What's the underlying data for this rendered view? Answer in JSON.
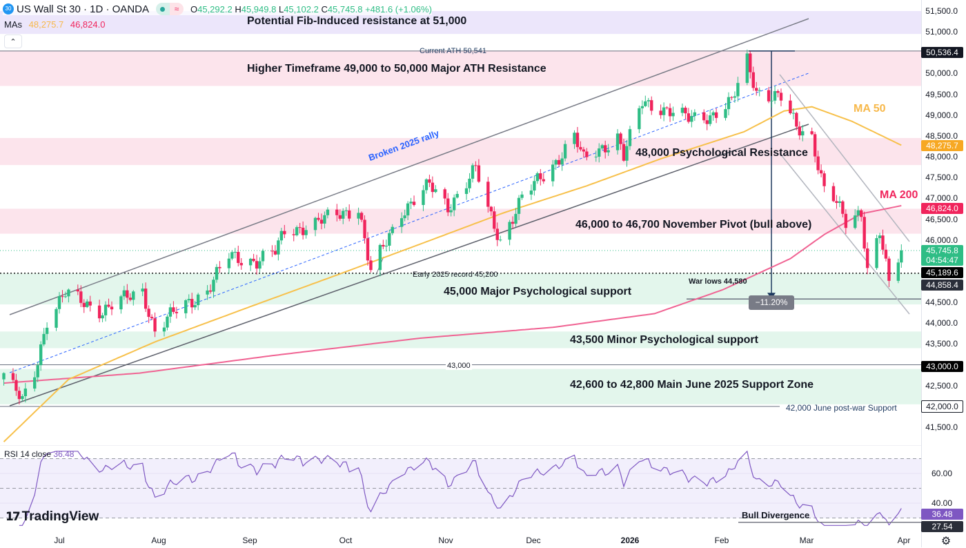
{
  "header": {
    "badge": "30",
    "symbol": "US Wall St 30 · 1D · OANDA",
    "o_label": "O",
    "open": "45,292.2",
    "h_label": "H",
    "high": "45,949.8",
    "l_label": "L",
    "low": "45,102.2",
    "c_label": "C",
    "close": "45,745.8",
    "change": "+481.6 (+1.06%)",
    "mas_label": "MAs",
    "ma50_value": "48,275.7",
    "ma200_value": "46,824.0",
    "collapse_icon": "chevron-up-icon"
  },
  "colors": {
    "up": "#2ebd85",
    "down": "#f0245c",
    "ma50": "#f7c04a",
    "ma200": "#f06292",
    "rsi": "#7e57c2",
    "resistance_zone": "#fce4ec",
    "support_zone": "#e3f6ec",
    "fib_zone": "#ece6fb"
  },
  "annotations": {
    "fib": "Potential Fib-Induced resistance at 51,000",
    "ath_line": "Current ATH 50,541",
    "ath_zone": "Higher Timeframe 49,000 to 50,000 Major ATH Resistance",
    "broken": "Broken 2025 rally",
    "ma50": "MA 50",
    "ma200": "MA 200",
    "res48": "48,000 Psychological Resistance",
    "pivot": "46,000 to 46,700 November Pivot (bull above)",
    "record": "Early 2025 record 45,200",
    "war_lows": "War lows 44,580",
    "measure": "−11.20%",
    "sup45": "45,000 Major Psychological support",
    "sup435": "43,500 Minor Psychological support",
    "line43": "43,000",
    "sup426": "42,600 to 42,800 Main June 2025 Support Zone",
    "line42": "42,000 June post-war Support",
    "bull_div": "Bull Divergence"
  },
  "price_axis": {
    "ticks": [
      "51,500.0",
      "51,000.0",
      "50,000.0",
      "49,500.0",
      "49,000.0",
      "48,500.0",
      "48,000.0",
      "47,500.0",
      "47,000.0",
      "46,500.0",
      "46,000.0",
      "44,500.0",
      "44,000.0",
      "43,500.0",
      "42,500.0",
      "41,500.0"
    ],
    "ath": "50,536.4",
    "ma50": "48,275.7",
    "ma200": "46,824.0",
    "last": "45,745.8",
    "countdown": "04:54:47",
    "record": "45,189.6",
    "war": "44,858.4",
    "l43": "43,000.0",
    "l42": "42,000.0"
  },
  "time_axis": [
    "Jul",
    "Aug",
    "Sep",
    "Oct",
    "Nov",
    "Dec",
    "2026",
    "Feb",
    "Mar",
    "Apr"
  ],
  "rsi": {
    "label": "RSI 14 close",
    "value": "36.48",
    "ticks": [
      "60.00",
      "40.00"
    ],
    "low_mark": "27.54"
  },
  "logo": "TradingView",
  "chart_data": {
    "type": "candlestick",
    "symbol": "US Wall St 30",
    "interval": "1D",
    "ylim": [
      41250,
      51750
    ],
    "close_path": [
      [
        "2025-06-13",
        42800
      ],
      [
        "2025-06-19",
        42100
      ],
      [
        "2025-06-23",
        42800
      ],
      [
        "2025-06-27",
        44100
      ],
      [
        "2025-07-03",
        44700
      ],
      [
        "2025-07-15",
        44300
      ],
      [
        "2025-07-28",
        44800
      ],
      [
        "2025-08-01",
        43800
      ],
      [
        "2025-08-08",
        44300
      ],
      [
        "2025-08-18",
        44800
      ],
      [
        "2025-08-25",
        45600
      ],
      [
        "2025-09-03",
        45500
      ],
      [
        "2025-09-09",
        45700
      ],
      [
        "2025-09-12",
        46200
      ],
      [
        "2025-09-22",
        46400
      ],
      [
        "2025-10-06",
        46800
      ],
      [
        "2025-10-10",
        45200
      ],
      [
        "2025-10-20",
        46700
      ],
      [
        "2025-10-29",
        47300
      ],
      [
        "2025-11-04",
        46800
      ],
      [
        "2025-11-13",
        47700
      ],
      [
        "2025-11-17",
        46700
      ],
      [
        "2025-11-21",
        46000
      ],
      [
        "2025-11-28",
        47000
      ],
      [
        "2025-12-08",
        47800
      ],
      [
        "2025-12-15",
        48500
      ],
      [
        "2025-12-18",
        47900
      ],
      [
        "2025-12-29",
        48500
      ],
      [
        "2025-12-31",
        48000
      ],
      [
        "2026-01-06",
        49300
      ],
      [
        "2026-01-12",
        49200
      ],
      [
        "2026-01-21",
        48900
      ],
      [
        "2026-01-28",
        49000
      ],
      [
        "2026-02-04",
        49300
      ],
      [
        "2026-02-09",
        50300
      ],
      [
        "2026-02-12",
        49600
      ],
      [
        "2026-02-20",
        49400
      ],
      [
        "2026-02-25",
        48700
      ],
      [
        "2026-03-02",
        48500
      ],
      [
        "2026-03-06",
        47200
      ],
      [
        "2026-03-09",
        47000
      ],
      [
        "2026-03-13",
        46400
      ],
      [
        "2026-03-18",
        46700
      ],
      [
        "2026-03-20",
        45300
      ],
      [
        "2026-03-24",
        46200
      ],
      [
        "2026-03-27",
        44900
      ],
      [
        "2026-03-31",
        45745.8
      ]
    ],
    "ma50": [
      [
        "2025-06-13",
        41150
      ],
      [
        "2025-07-04",
        42650
      ],
      [
        "2025-08-01",
        43550
      ],
      [
        "2025-09-01",
        44400
      ],
      [
        "2025-09-28",
        45130
      ],
      [
        "2025-10-26",
        45900
      ],
      [
        "2025-11-22",
        46650
      ],
      [
        "2025-12-19",
        47300
      ],
      [
        "2026-01-12",
        47950
      ],
      [
        "2026-02-08",
        48600
      ],
      [
        "2026-02-21",
        49100
      ],
      [
        "2026-03-02",
        49200
      ],
      [
        "2026-03-15",
        48850
      ],
      [
        "2026-03-31",
        48275.7
      ]
    ],
    "ma200": [
      [
        "2025-06-13",
        42560
      ],
      [
        "2025-07-27",
        42800
      ],
      [
        "2025-09-09",
        43230
      ],
      [
        "2025-10-26",
        43640
      ],
      [
        "2025-12-08",
        43900
      ],
      [
        "2026-01-10",
        44230
      ],
      [
        "2026-02-01",
        44800
      ],
      [
        "2026-02-23",
        45550
      ],
      [
        "2026-03-06",
        46130
      ],
      [
        "2026-03-18",
        46630
      ],
      [
        "2026-03-31",
        46824
      ]
    ],
    "rsi_levels": [
      70,
      50,
      30
    ]
  }
}
